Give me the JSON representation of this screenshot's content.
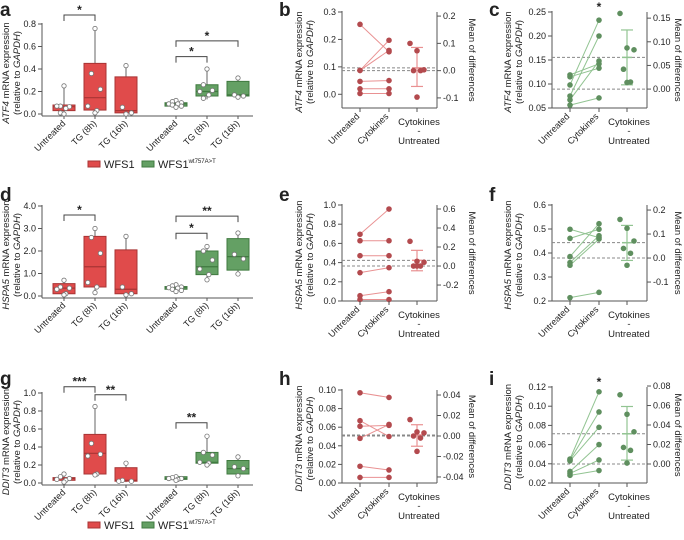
{
  "colors": {
    "wfs1": "#e04b4b",
    "wfs1_dark": "#a83434",
    "mutant": "#64a064",
    "mutant_dark": "#3f7a3f",
    "paired_red_point": "#b34a4e",
    "paired_red_line": "#e99192",
    "paired_green_point": "#5f8f5f",
    "paired_green_line": "#92c492",
    "dashed": "#888888"
  },
  "legend": {
    "wfs1": "WFS1",
    "mutant": "WFS1",
    "mutant_sup": "wt757A>T"
  },
  "box_panels": [
    {
      "letter": "a",
      "ylabel": [
        "ATF4",
        " mRNA expression"
      ],
      "ylabel2": [
        "(relative to ",
        "GAPDH",
        ")"
      ],
      "ylim": [
        0,
        0.8
      ],
      "yticks": [
        "0.0",
        "0.2",
        "0.4",
        "0.6",
        "0.8"
      ],
      "legend": true,
      "groups": [
        {
          "label": "Untreated",
          "genotype": "wfs1",
          "min": 0.0,
          "q1": 0.03,
          "median": 0.065,
          "q3": 0.08,
          "max": 0.25,
          "points": [
            0.25,
            0.07,
            0.065,
            0.07,
            0.05,
            0.01,
            0.0
          ]
        },
        {
          "label": "TG (8h)",
          "genotype": "wfs1",
          "min": 0.01,
          "q1": 0.035,
          "median": 0.145,
          "q3": 0.45,
          "max": 0.76,
          "points": [
            0.76,
            0.36,
            0.22,
            0.07,
            0.03,
            0.01
          ]
        },
        {
          "label": "TG (16h)",
          "genotype": "wfs1",
          "min": 0.0,
          "q1": 0.01,
          "median": 0.03,
          "q3": 0.33,
          "max": 0.43,
          "points": [
            0.43,
            0.06,
            0.01,
            0.0
          ]
        },
        {
          "label": "Untreated",
          "genotype": "mutant",
          "min": 0.06,
          "q1": 0.07,
          "median": 0.09,
          "q3": 0.1,
          "max": 0.12,
          "points": [
            0.12,
            0.11,
            0.1,
            0.09,
            0.09,
            0.08,
            0.07,
            0.06
          ]
        },
        {
          "label": "TG (8h)",
          "genotype": "mutant",
          "min": 0.13,
          "q1": 0.16,
          "median": 0.2,
          "q3": 0.26,
          "max": 0.4,
          "points": [
            0.4,
            0.26,
            0.21,
            0.2,
            0.17,
            0.14
          ]
        },
        {
          "label": "TG (16h)",
          "genotype": "mutant",
          "min": 0.15,
          "q1": 0.16,
          "median": 0.17,
          "q3": 0.29,
          "max": 0.32,
          "points": [
            0.32,
            0.17,
            0.16,
            0.15
          ]
        }
      ],
      "brackets": [
        {
          "from": 0,
          "to": 1,
          "y": 0.88,
          "label": "*"
        },
        {
          "from": 3,
          "to": 5,
          "y": 0.65,
          "label": "*"
        },
        {
          "from": 3,
          "to": 4,
          "y": 0.51,
          "label": "*"
        }
      ]
    },
    {
      "letter": "d",
      "ylabel": [
        "HSPA5",
        " mRNA expression"
      ],
      "ylabel2": [
        "(relative to ",
        "GAPDH",
        ")"
      ],
      "ylim": [
        0,
        4.0
      ],
      "yticks": [
        "0.0",
        "1.0",
        "2.0",
        "3.0",
        "4.0"
      ],
      "legend": false,
      "groups": [
        {
          "label": "Untreated",
          "genotype": "wfs1",
          "min": 0.05,
          "q1": 0.1,
          "median": 0.35,
          "q3": 0.55,
          "max": 0.7,
          "points": [
            0.7,
            0.4,
            0.35,
            0.3,
            0.1,
            0.05
          ]
        },
        {
          "label": "TG (8h)",
          "genotype": "wfs1",
          "min": 0.15,
          "q1": 0.4,
          "median": 1.3,
          "q3": 2.65,
          "max": 3.0,
          "points": [
            3.0,
            2.6,
            1.9,
            0.6,
            0.4,
            0.15
          ]
        },
        {
          "label": "TG (16h)",
          "genotype": "wfs1",
          "min": 0.05,
          "q1": 0.1,
          "median": 0.3,
          "q3": 2.05,
          "max": 2.65,
          "points": [
            2.65,
            0.4,
            0.1,
            0.05
          ]
        },
        {
          "label": "Untreated",
          "genotype": "mutant",
          "min": 0.2,
          "q1": 0.3,
          "median": 0.37,
          "q3": 0.42,
          "max": 0.5,
          "points": [
            0.5,
            0.45,
            0.4,
            0.37,
            0.35,
            0.3,
            0.25,
            0.2
          ]
        },
        {
          "label": "TG (8h)",
          "genotype": "mutant",
          "min": 0.72,
          "q1": 0.95,
          "median": 1.3,
          "q3": 2.0,
          "max": 2.2,
          "points": [
            2.2,
            2.0,
            1.6,
            1.2,
            0.95,
            0.72
          ]
        },
        {
          "label": "TG (16h)",
          "genotype": "mutant",
          "min": 0.98,
          "q1": 1.15,
          "median": 1.75,
          "q3": 2.55,
          "max": 2.8,
          "points": [
            2.8,
            1.85,
            1.65,
            0.98
          ]
        }
      ],
      "brackets": [
        {
          "from": 0,
          "to": 1,
          "y": 3.6,
          "label": "*"
        },
        {
          "from": 3,
          "to": 5,
          "y": 3.55,
          "label": "**"
        },
        {
          "from": 3,
          "to": 4,
          "y": 2.79,
          "label": "*"
        }
      ]
    },
    {
      "letter": "g",
      "ylabel": [
        "DDIT3",
        " mRNA expression"
      ],
      "ylabel2": [
        "(relative to ",
        "GAPDH",
        ")"
      ],
      "ylim": [
        0,
        1.0
      ],
      "yticks": [
        "0.0",
        "0.2",
        "0.4",
        "0.6",
        "0.8",
        "1.0"
      ],
      "legend": true,
      "groups": [
        {
          "label": "Untreated",
          "genotype": "wfs1",
          "min": 0.01,
          "q1": 0.03,
          "median": 0.05,
          "q3": 0.06,
          "max": 0.1,
          "points": [
            0.1,
            0.07,
            0.05,
            0.04,
            0.03,
            0.01
          ]
        },
        {
          "label": "TG (8h)",
          "genotype": "wfs1",
          "min": 0.09,
          "q1": 0.1,
          "median": 0.33,
          "q3": 0.54,
          "max": 0.85,
          "points": [
            0.85,
            0.44,
            0.32,
            0.3,
            0.1,
            0.09
          ]
        },
        {
          "label": "TG (16h)",
          "genotype": "wfs1",
          "min": 0.01,
          "q1": 0.02,
          "median": 0.03,
          "q3": 0.17,
          "max": 0.22,
          "points": [
            0.22,
            0.03,
            0.02,
            0.02
          ]
        },
        {
          "label": "Untreated",
          "genotype": "mutant",
          "min": 0.03,
          "q1": 0.04,
          "median": 0.05,
          "q3": 0.07,
          "max": 0.07,
          "points": [
            0.07,
            0.06,
            0.05,
            0.05,
            0.04,
            0.03
          ]
        },
        {
          "label": "TG (8h)",
          "genotype": "mutant",
          "min": 0.2,
          "q1": 0.22,
          "median": 0.23,
          "q3": 0.34,
          "max": 0.52,
          "points": [
            0.52,
            0.34,
            0.31,
            0.23,
            0.22,
            0.2
          ]
        },
        {
          "label": "TG (16h)",
          "genotype": "mutant",
          "min": 0.08,
          "q1": 0.1,
          "median": 0.16,
          "q3": 0.25,
          "max": 0.29,
          "points": [
            0.29,
            0.18,
            0.16,
            0.08
          ]
        }
      ],
      "brackets": [
        {
          "from": 0,
          "to": 1,
          "y": 1.07,
          "label": "***"
        },
        {
          "from": 1,
          "to": 2,
          "y": 0.98,
          "label": "**"
        },
        {
          "from": 3,
          "to": 4,
          "y": 0.67,
          "label": "**"
        }
      ]
    }
  ],
  "paired_panels": [
    {
      "letter": "b",
      "color": "red",
      "ylabel": [
        "ATF4",
        " mRNA expression"
      ],
      "ylabel2": [
        "(relative to ",
        "GAPDH",
        ")"
      ],
      "ylim": [
        -0.05,
        0.3
      ],
      "yticks": [
        "0.0",
        "0.1",
        "0.2",
        "0.3"
      ],
      "rlim": [
        -0.137,
        0.215
      ],
      "rticks": [
        "-0.1",
        "0.0",
        "0.1",
        "0.2"
      ],
      "untreated": [
        0.255,
        0.087,
        0.087,
        0.047,
        0.02,
        0.003
      ],
      "cytokines": [
        0.155,
        0.197,
        0.16,
        0.05,
        0.02,
        0.003
      ],
      "differences": [
        0.1,
        0.073,
        0.003,
        0.0,
        0.0,
        -0.097
      ],
      "mean_difference": 0.01,
      "ci": [
        -0.058,
        0.085
      ],
      "star": ""
    },
    {
      "letter": "c",
      "color": "green",
      "ylabel": [
        "ATF4",
        " mRNA expression"
      ],
      "ylabel2": [
        "(relative to ",
        "GAPDH",
        ")"
      ],
      "ylim": [
        0.05,
        0.25
      ],
      "yticks": [
        "0.05",
        "0.10",
        "0.15",
        "0.20",
        "0.25"
      ],
      "rlim": [
        -0.04,
        0.163
      ],
      "rticks": [
        "0.00",
        "0.05",
        "0.10",
        "0.15"
      ],
      "untreated": [
        0.119,
        0.115,
        0.098,
        0.075,
        0.067,
        0.056
      ],
      "cytokines": [
        0.142,
        0.133,
        0.233,
        0.2,
        0.148,
        0.071
      ],
      "differences": [
        0.16,
        0.087,
        0.083,
        0.042,
        0.015,
        0.014
      ],
      "mean_difference": 0.067,
      "ci": [
        0.009,
        0.125
      ],
      "star": "*"
    },
    {
      "letter": "e",
      "color": "red",
      "ylabel": [
        "HSPA5",
        " mRNA expression"
      ],
      "ylabel2": [
        "(relative to ",
        "GAPDH",
        ")"
      ],
      "ylim": [
        0,
        1.0
      ],
      "yticks": [
        "0.0",
        "0.2",
        "0.4",
        "0.6",
        "0.8",
        "1.0"
      ],
      "rlim": [
        -0.368,
        0.642
      ],
      "rticks": [
        "-0.2",
        "0.0",
        "0.2",
        "0.4",
        "0.6"
      ],
      "untreated": [
        0.695,
        0.628,
        0.472,
        0.295,
        0.055,
        0.015
      ],
      "cytokines": [
        0.958,
        0.628,
        0.472,
        0.347,
        0.097,
        0.015
      ],
      "differences": [
        0.26,
        0.05,
        0.04,
        0.0,
        0.0,
        0.0
      ],
      "mean_difference": 0.06,
      "ci": [
        -0.05,
        0.165
      ],
      "star": ""
    },
    {
      "letter": "f",
      "color": "green",
      "ylabel": [
        "HSPA5",
        " mRNA expression"
      ],
      "ylabel2": [
        "(relative to ",
        "GAPDH",
        ")"
      ],
      "ylim": [
        0.2,
        0.6
      ],
      "yticks": [
        "0.2",
        "0.3",
        "0.4",
        "0.5",
        "0.6"
      ],
      "rlim": [
        -0.179,
        0.221
      ],
      "rticks": [
        "-0.1",
        "0.0",
        "0.1",
        "0.2"
      ],
      "untreated": [
        0.499,
        0.461,
        0.385,
        0.36,
        0.349,
        0.214
      ],
      "cytokines": [
        0.464,
        0.499,
        0.522,
        0.472,
        0.458,
        0.236
      ],
      "differences": [
        0.161,
        0.124,
        0.071,
        0.04,
        0.02,
        -0.03
      ],
      "mean_difference": 0.064,
      "ci": [
        -0.01,
        0.136
      ],
      "star": ""
    },
    {
      "letter": "h",
      "color": "red",
      "ylabel": [
        "DDIT3",
        " mRNA expression"
      ],
      "ylabel2": [
        "(relative to ",
        "GAPDH",
        ")"
      ],
      "ylim": [
        0,
        0.1
      ],
      "yticks": [
        "0.00",
        "0.02",
        "0.04",
        "0.06",
        "0.08",
        "0.10"
      ],
      "rlim": [
        -0.0459,
        0.0449
      ],
      "rticks": [
        "-0.04",
        "-0.02",
        "0.00",
        "0.02",
        "0.04"
      ],
      "untreated": [
        0.097,
        0.067,
        0.061,
        0.048,
        0.018,
        0.006
      ],
      "cytokines": [
        0.092,
        0.05,
        0.062,
        0.063,
        0.014,
        0.006
      ],
      "differences": [
        0.016,
        0.004,
        0.003,
        0.0,
        -0.002,
        -0.015
      ],
      "mean_difference": 0.001,
      "ci": [
        -0.01,
        0.011
      ],
      "star": ""
    },
    {
      "letter": "i",
      "color": "green",
      "ylabel": [
        "DDIT3",
        " mRNA expression"
      ],
      "ylabel2": [
        "(relative to ",
        "GAPDH",
        ")"
      ],
      "ylim": [
        0.02,
        0.12
      ],
      "yticks": [
        "0.02",
        "0.04",
        "0.06",
        "0.08",
        "0.10",
        "0.12"
      ],
      "rlim": [
        -0.0195,
        0.079
      ],
      "rticks": [
        "0.00",
        "0.02",
        "0.04",
        "0.06",
        "0.08"
      ],
      "untreated": [
        0.045,
        0.044,
        0.043,
        0.032,
        0.03,
        0.028
      ],
      "cytokines": [
        0.115,
        0.094,
        0.078,
        0.06,
        0.044,
        0.033
      ],
      "differences": [
        0.071,
        0.051,
        0.033,
        0.017,
        0.014,
        0.001
      ],
      "mean_difference": 0.031,
      "ci": [
        0.004,
        0.059
      ],
      "star": "*"
    }
  ],
  "paired_labels": {
    "untreated": "Untreated",
    "cytokines": "Cytokines",
    "diff1": "Cytokines",
    "diff2": "-",
    "diff3": "Untreated",
    "right_axis": "Mean of differences"
  }
}
